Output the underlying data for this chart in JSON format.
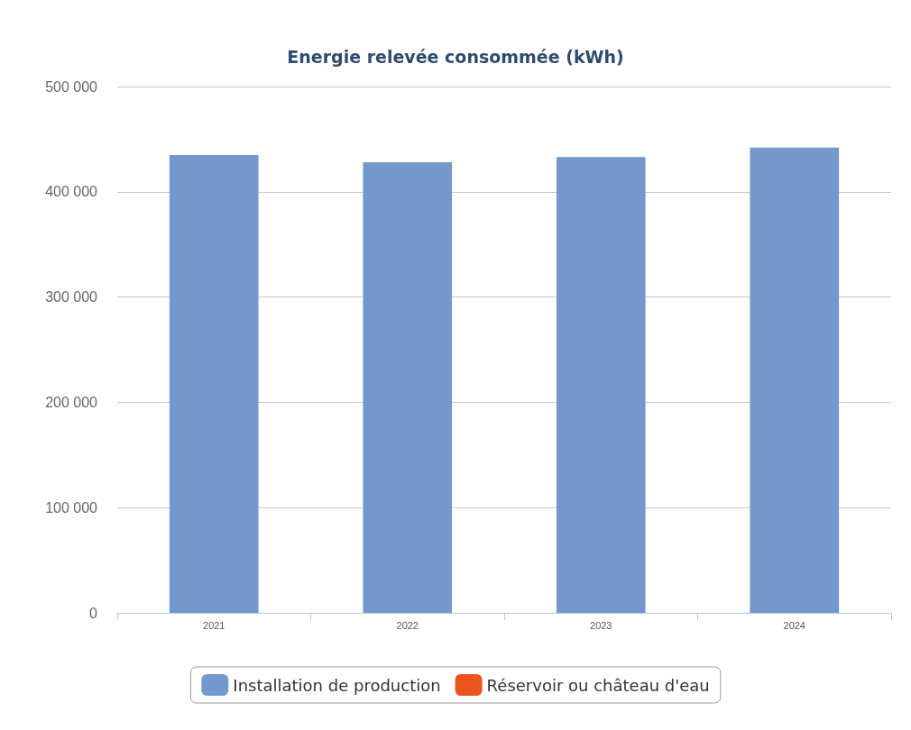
{
  "chart_data": {
    "type": "bar",
    "title": "Energie relevée consommée (kWh)",
    "categories": [
      "2021",
      "2022",
      "2023",
      "2024"
    ],
    "stacked": true,
    "series": [
      {
        "name": "Installation de production",
        "color": "#7399cc",
        "values": [
          435000,
          428000,
          433000,
          442000
        ]
      },
      {
        "name": "Réservoir ou château d'eau",
        "color": "#e8561e",
        "values": [
          0,
          0,
          0,
          0
        ]
      }
    ],
    "ylim": [
      0,
      500000
    ],
    "yticks": [
      {
        "value": 0,
        "label": "0"
      },
      {
        "value": 100000,
        "label": "100 000"
      },
      {
        "value": 200000,
        "label": "200 000"
      },
      {
        "value": 300000,
        "label": "300 000"
      },
      {
        "value": 400000,
        "label": "400 000"
      },
      {
        "value": 500000,
        "label": "500 000"
      }
    ],
    "grid": "y",
    "legend": "bottom"
  }
}
